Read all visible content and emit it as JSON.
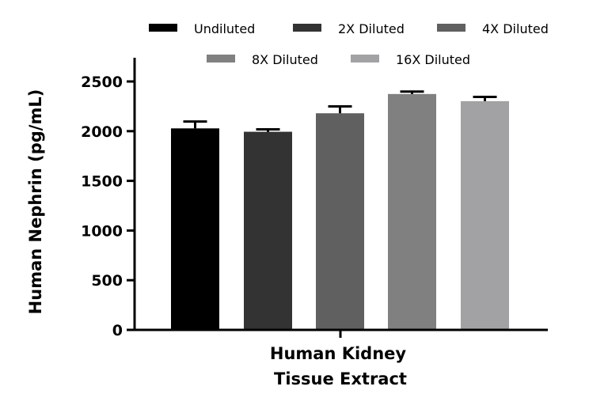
{
  "chart_data": {
    "type": "bar",
    "categories": [
      "Human Kidney Tissue Extract"
    ],
    "xlabel_lines": [
      "Human Kidney",
      "Tissue Extract"
    ],
    "ylabel": "Human Nephrin (pg/mL)",
    "ylim": [
      0,
      2500
    ],
    "yticks": [
      "0",
      "500",
      "1000",
      "1500",
      "2000",
      "2500"
    ],
    "grid": false,
    "legend_position": "top",
    "series": [
      {
        "name": "Undiluted",
        "values": [
          2028
        ],
        "error": [
          69
        ],
        "color": "#000000"
      },
      {
        "name": "2X Diluted",
        "values": [
          1994
        ],
        "error": [
          24
        ],
        "color": "#333333"
      },
      {
        "name": "4X Diluted",
        "values": [
          2180
        ],
        "error": [
          69
        ],
        "color": "#606060"
      },
      {
        "name": "8X Diluted",
        "values": [
          2374
        ],
        "error": [
          24
        ],
        "color": "#808080"
      },
      {
        "name": "16X Diluted",
        "values": [
          2302
        ],
        "error": [
          43
        ],
        "color": "#a2a2a4"
      }
    ]
  }
}
